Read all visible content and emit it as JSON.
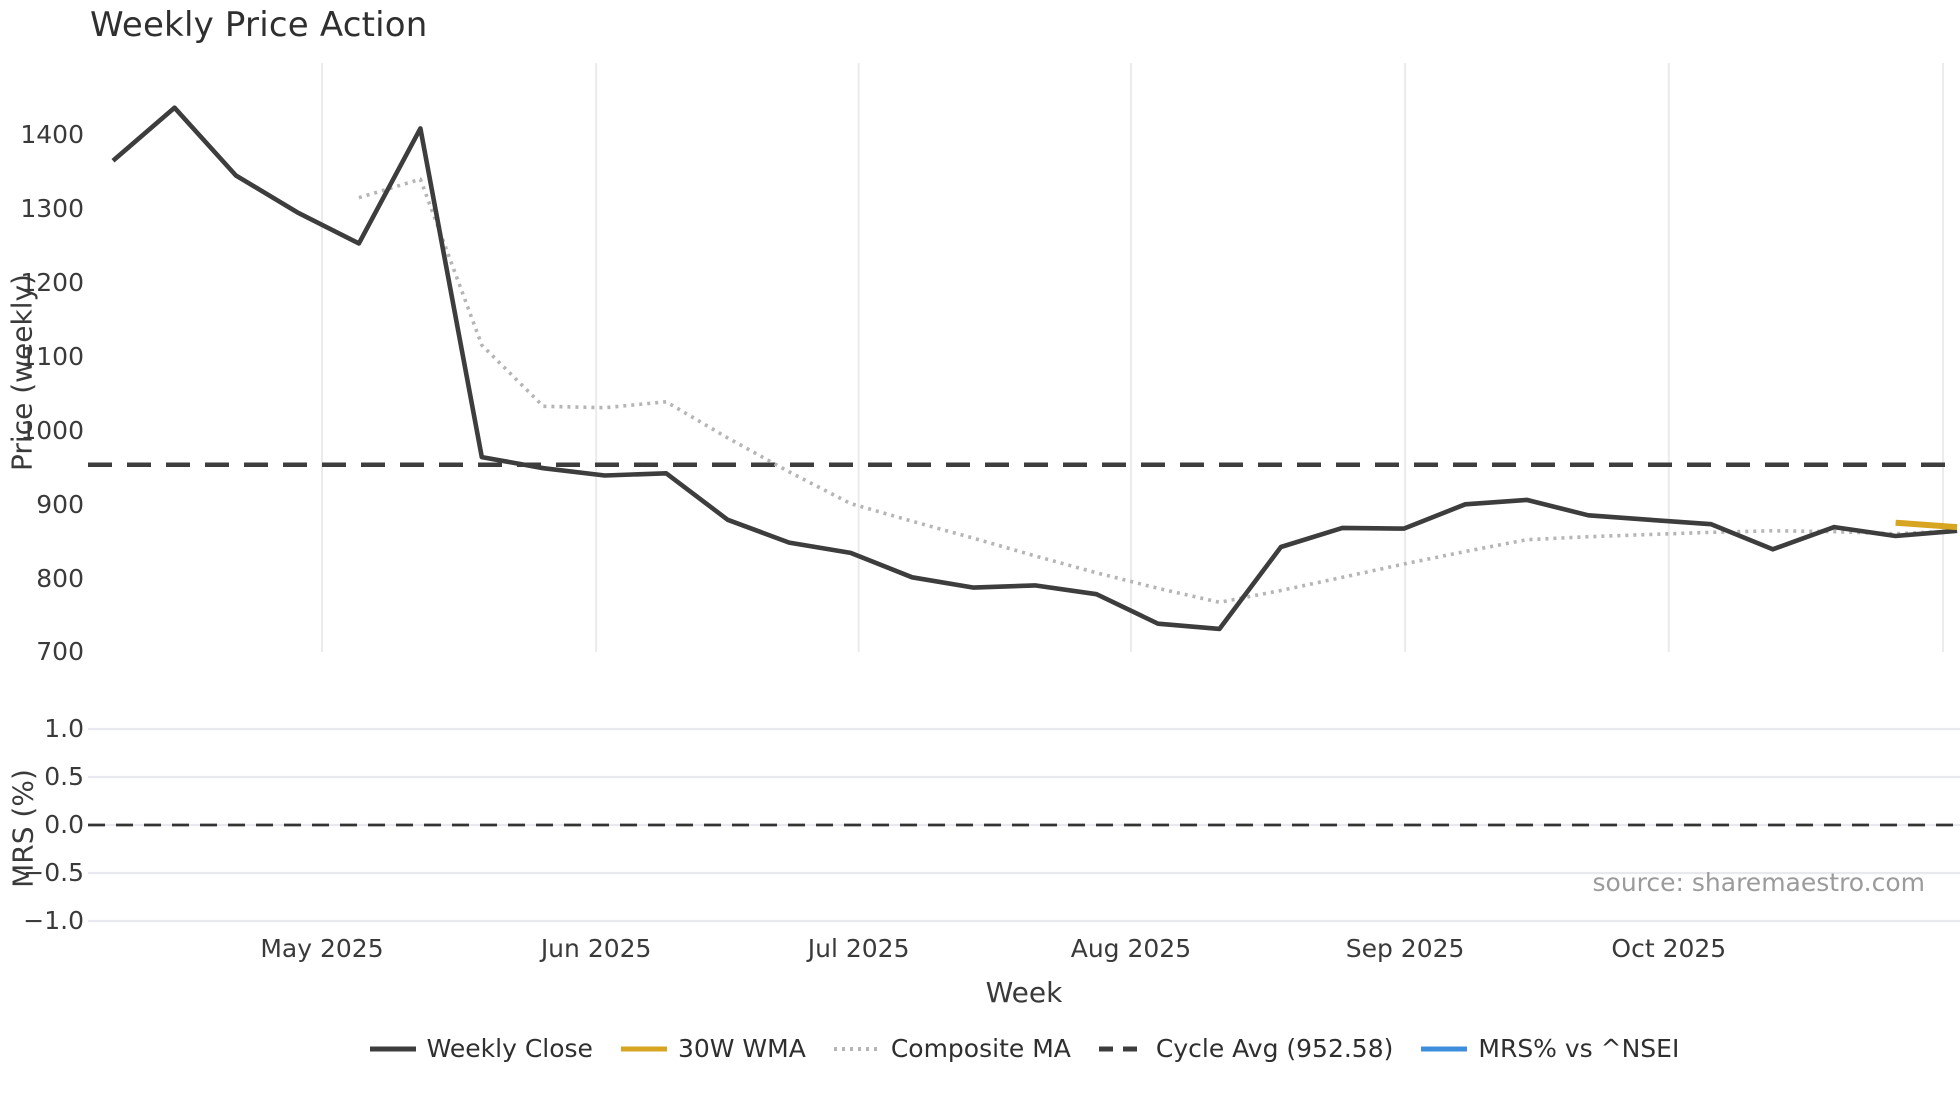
{
  "title": "Weekly Price Action",
  "source_credit": "source: sharemaestro.com",
  "price_panel": {
    "y_axis_label": "Price (weekly)",
    "y_ticks": [
      "1400",
      "1300",
      "1200",
      "1100",
      "1000",
      "900",
      "800",
      "700"
    ]
  },
  "mrs_panel": {
    "y_axis_label": "MRS (%)",
    "y_ticks": [
      "1.0",
      "0.5",
      "0.0",
      "−0.5",
      "−1.0"
    ]
  },
  "x_axis": {
    "label": "Week",
    "tick_labels": [
      "May 2025",
      "Jun 2025",
      "Jul 2025",
      "Aug 2025",
      "Sep 2025",
      "Oct 2025"
    ]
  },
  "legend": [
    {
      "label": "Weekly Close",
      "color": "#3d3d3d",
      "style": "solid"
    },
    {
      "label": "30W WMA",
      "color": "#d7a521",
      "style": "solid"
    },
    {
      "label": "Composite MA",
      "color": "#b5b5b5",
      "style": "dotted"
    },
    {
      "label": "Cycle Avg (952.58)",
      "color": "#3d3d3d",
      "style": "dashed"
    },
    {
      "label": "MRS% vs ^NSEI",
      "color": "#3e8edd",
      "style": "solid"
    }
  ],
  "colors": {
    "weekly_close": "#3d3d3d",
    "wma_30w": "#d7a521",
    "composite_ma": "#b5b5b5",
    "cycle_avg": "#3d3d3d",
    "mrs_line": "#3e8edd",
    "price_gridline": "#ebebeb",
    "mrs_gridline": "#e8e8ef",
    "mrs_zero_line": "#333333",
    "tick_text": "#3a3a3a"
  },
  "chart_data": [
    {
      "panel": "price",
      "type": "line",
      "x_unit": "weekly points (~31 weeks, Apr–Nov 2025)",
      "ylim": [
        698,
        1498
      ],
      "yticks": [
        1400,
        1300,
        1200,
        1100,
        1000,
        900,
        800,
        700
      ],
      "grid": "vertical month gridlines only",
      "month_gridline_week_offsets": [
        3.4,
        7.86,
        12.13,
        16.56,
        21.02,
        25.31,
        29.77
      ],
      "month_labels": [
        "May 2025",
        "Jun 2025",
        "Jul 2025",
        "Aug 2025",
        "Sep 2025",
        "Oct 2025"
      ],
      "cycle_avg_value": 952.58,
      "series": [
        {
          "name": "Weekly Close",
          "style": "solid",
          "color": "#3d3d3d",
          "values": [
            1365,
            1437,
            1345,
            1295,
            1253,
            1409,
            963,
            948,
            938,
            941,
            878,
            847,
            833,
            800,
            786,
            789,
            777,
            737,
            730,
            841,
            867,
            866,
            899,
            905,
            884,
            878,
            872,
            838,
            868,
            856,
            863
          ]
        },
        {
          "name": "Composite MA",
          "style": "dotted",
          "color": "#b5b5b5",
          "values": [
            null,
            null,
            null,
            null,
            1315,
            1340,
            1115,
            1032,
            1030,
            1038,
            989,
            943,
            900,
            876,
            853,
            829,
            806,
            785,
            766,
            782,
            800,
            818,
            835,
            851,
            855,
            858,
            861,
            863,
            862,
            859,
            863
          ]
        },
        {
          "name": "30W WMA",
          "style": "solid",
          "color": "#d7a521",
          "values": [
            null,
            null,
            null,
            null,
            null,
            null,
            null,
            null,
            null,
            null,
            null,
            null,
            null,
            null,
            null,
            null,
            null,
            null,
            null,
            null,
            null,
            null,
            null,
            null,
            null,
            null,
            null,
            null,
            null,
            874,
            868
          ]
        },
        {
          "name": "Cycle Avg (952.58)",
          "style": "dashed",
          "color": "#3d3d3d",
          "constant": 952.58
        }
      ]
    },
    {
      "panel": "mrs",
      "type": "line",
      "ylim": [
        -1.25,
        1.25
      ],
      "yticks": [
        1.0,
        0.5,
        0.0,
        -0.5,
        -1.0
      ],
      "grid": "horizontal gridlines at each tick",
      "zero_reference_line": 0.0,
      "series": [
        {
          "name": "MRS% vs ^NSEI",
          "style": "solid",
          "color": "#3e8edd",
          "values": []
        }
      ]
    }
  ]
}
